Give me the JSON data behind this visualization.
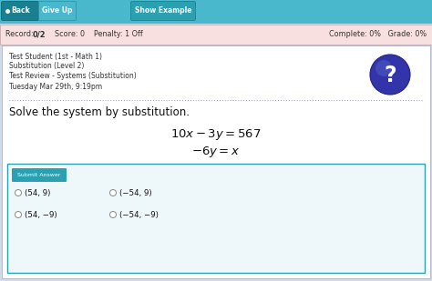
{
  "bg_color": "#d0dcea",
  "top_bar_color": "#4ab8cc",
  "record_bar_color": "#f8e0e0",
  "record_bar_border": "#ccaaaa",
  "main_bg": "#ffffff",
  "main_border": "#bbbbcc",
  "answer_box_border": "#2aa0b0",
  "answer_box_bg": "#eef8fa",
  "submit_btn_color": "#2aa0b0",
  "submit_btn_text": "Submit Answer",
  "back_btn_color": "#1a8090",
  "give_up_btn_color": "#4ab8cc",
  "show_example_btn_color": "#2aa0b0",
  "top_buttons": [
    "Back",
    "Give Up",
    "Show Example"
  ],
  "info_lines": [
    "Test Student (1st - Math 1)",
    "Substitution (Level 2)",
    "Test Review - Systems (Substitution)",
    "Tuesday Mar 29th, 9:19pm"
  ],
  "question_text": "Solve the system by substitution.",
  "answers": [
    [
      "(54, 9)",
      "(−54, 9)"
    ],
    [
      "(54, −9)",
      "(−54, −9)"
    ]
  ],
  "qmark_color": "#3333aa",
  "qmark_highlight": "#5566cc",
  "dotted_line_color": "#9999bb",
  "text_color": "#333333"
}
